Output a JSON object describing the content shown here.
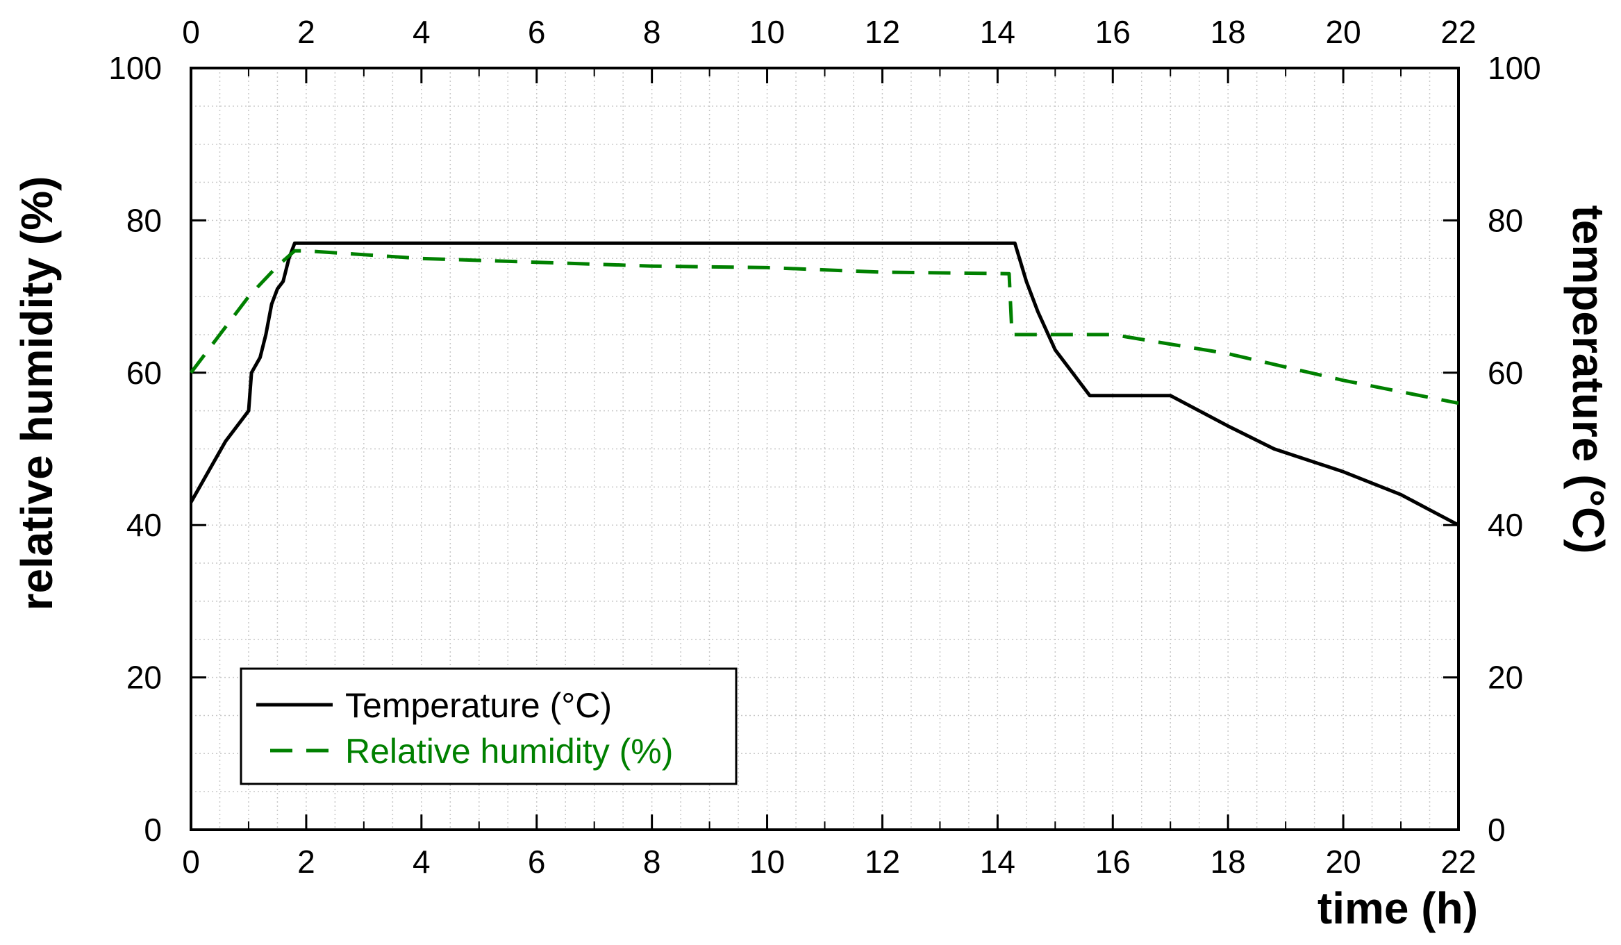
{
  "chart_data": {
    "type": "line",
    "title": "",
    "xlabel": "time (h)",
    "ylabel_left": "relative humidity (%)",
    "ylabel_right": "temperature (°C)",
    "xlim": [
      0,
      22
    ],
    "ylim_left": [
      0,
      100
    ],
    "ylim_right": [
      0,
      100
    ],
    "x_ticks": [
      "0",
      "2",
      "4",
      "6",
      "8",
      "10",
      "12",
      "14",
      "16",
      "18",
      "20",
      "22"
    ],
    "y_ticks": [
      "0",
      "20",
      "40",
      "60",
      "80",
      "100"
    ],
    "grid": true,
    "legend_position": "bottom-left",
    "series": [
      {
        "name": "Temperature (°C)",
        "axis": "right",
        "color": "#000000",
        "style": "solid",
        "x": [
          0,
          0.3,
          0.6,
          0.9,
          1.0,
          1.05,
          1.2,
          1.3,
          1.4,
          1.5,
          1.6,
          1.7,
          1.8,
          2.0,
          4,
          8,
          12,
          14.0,
          14.3,
          14.5,
          14.7,
          15.0,
          15.3,
          15.6,
          16.0,
          17.0,
          18.0,
          18.8,
          20.0,
          21.0,
          21.5,
          22.0
        ],
        "y": [
          43,
          47,
          51,
          54,
          55,
          60,
          62,
          65,
          69,
          71,
          72,
          75,
          77,
          77,
          77,
          77,
          77,
          77,
          77,
          72,
          68,
          63,
          60,
          57,
          57,
          57,
          53,
          50,
          47,
          44,
          42,
          40
        ]
      },
      {
        "name": "Relative humidity (%)",
        "axis": "left",
        "color": "#008000",
        "style": "dashed",
        "x": [
          0,
          0.5,
          1.0,
          1.5,
          1.8,
          2.0,
          4,
          6,
          8,
          10,
          12,
          14.2,
          14.25,
          16.0,
          18.0,
          20.0,
          22.0
        ],
        "y": [
          60,
          65,
          70,
          74,
          76,
          76,
          75,
          74.5,
          74,
          73.8,
          73.2,
          73,
          65,
          65,
          62.5,
          59,
          56
        ]
      }
    ]
  }
}
